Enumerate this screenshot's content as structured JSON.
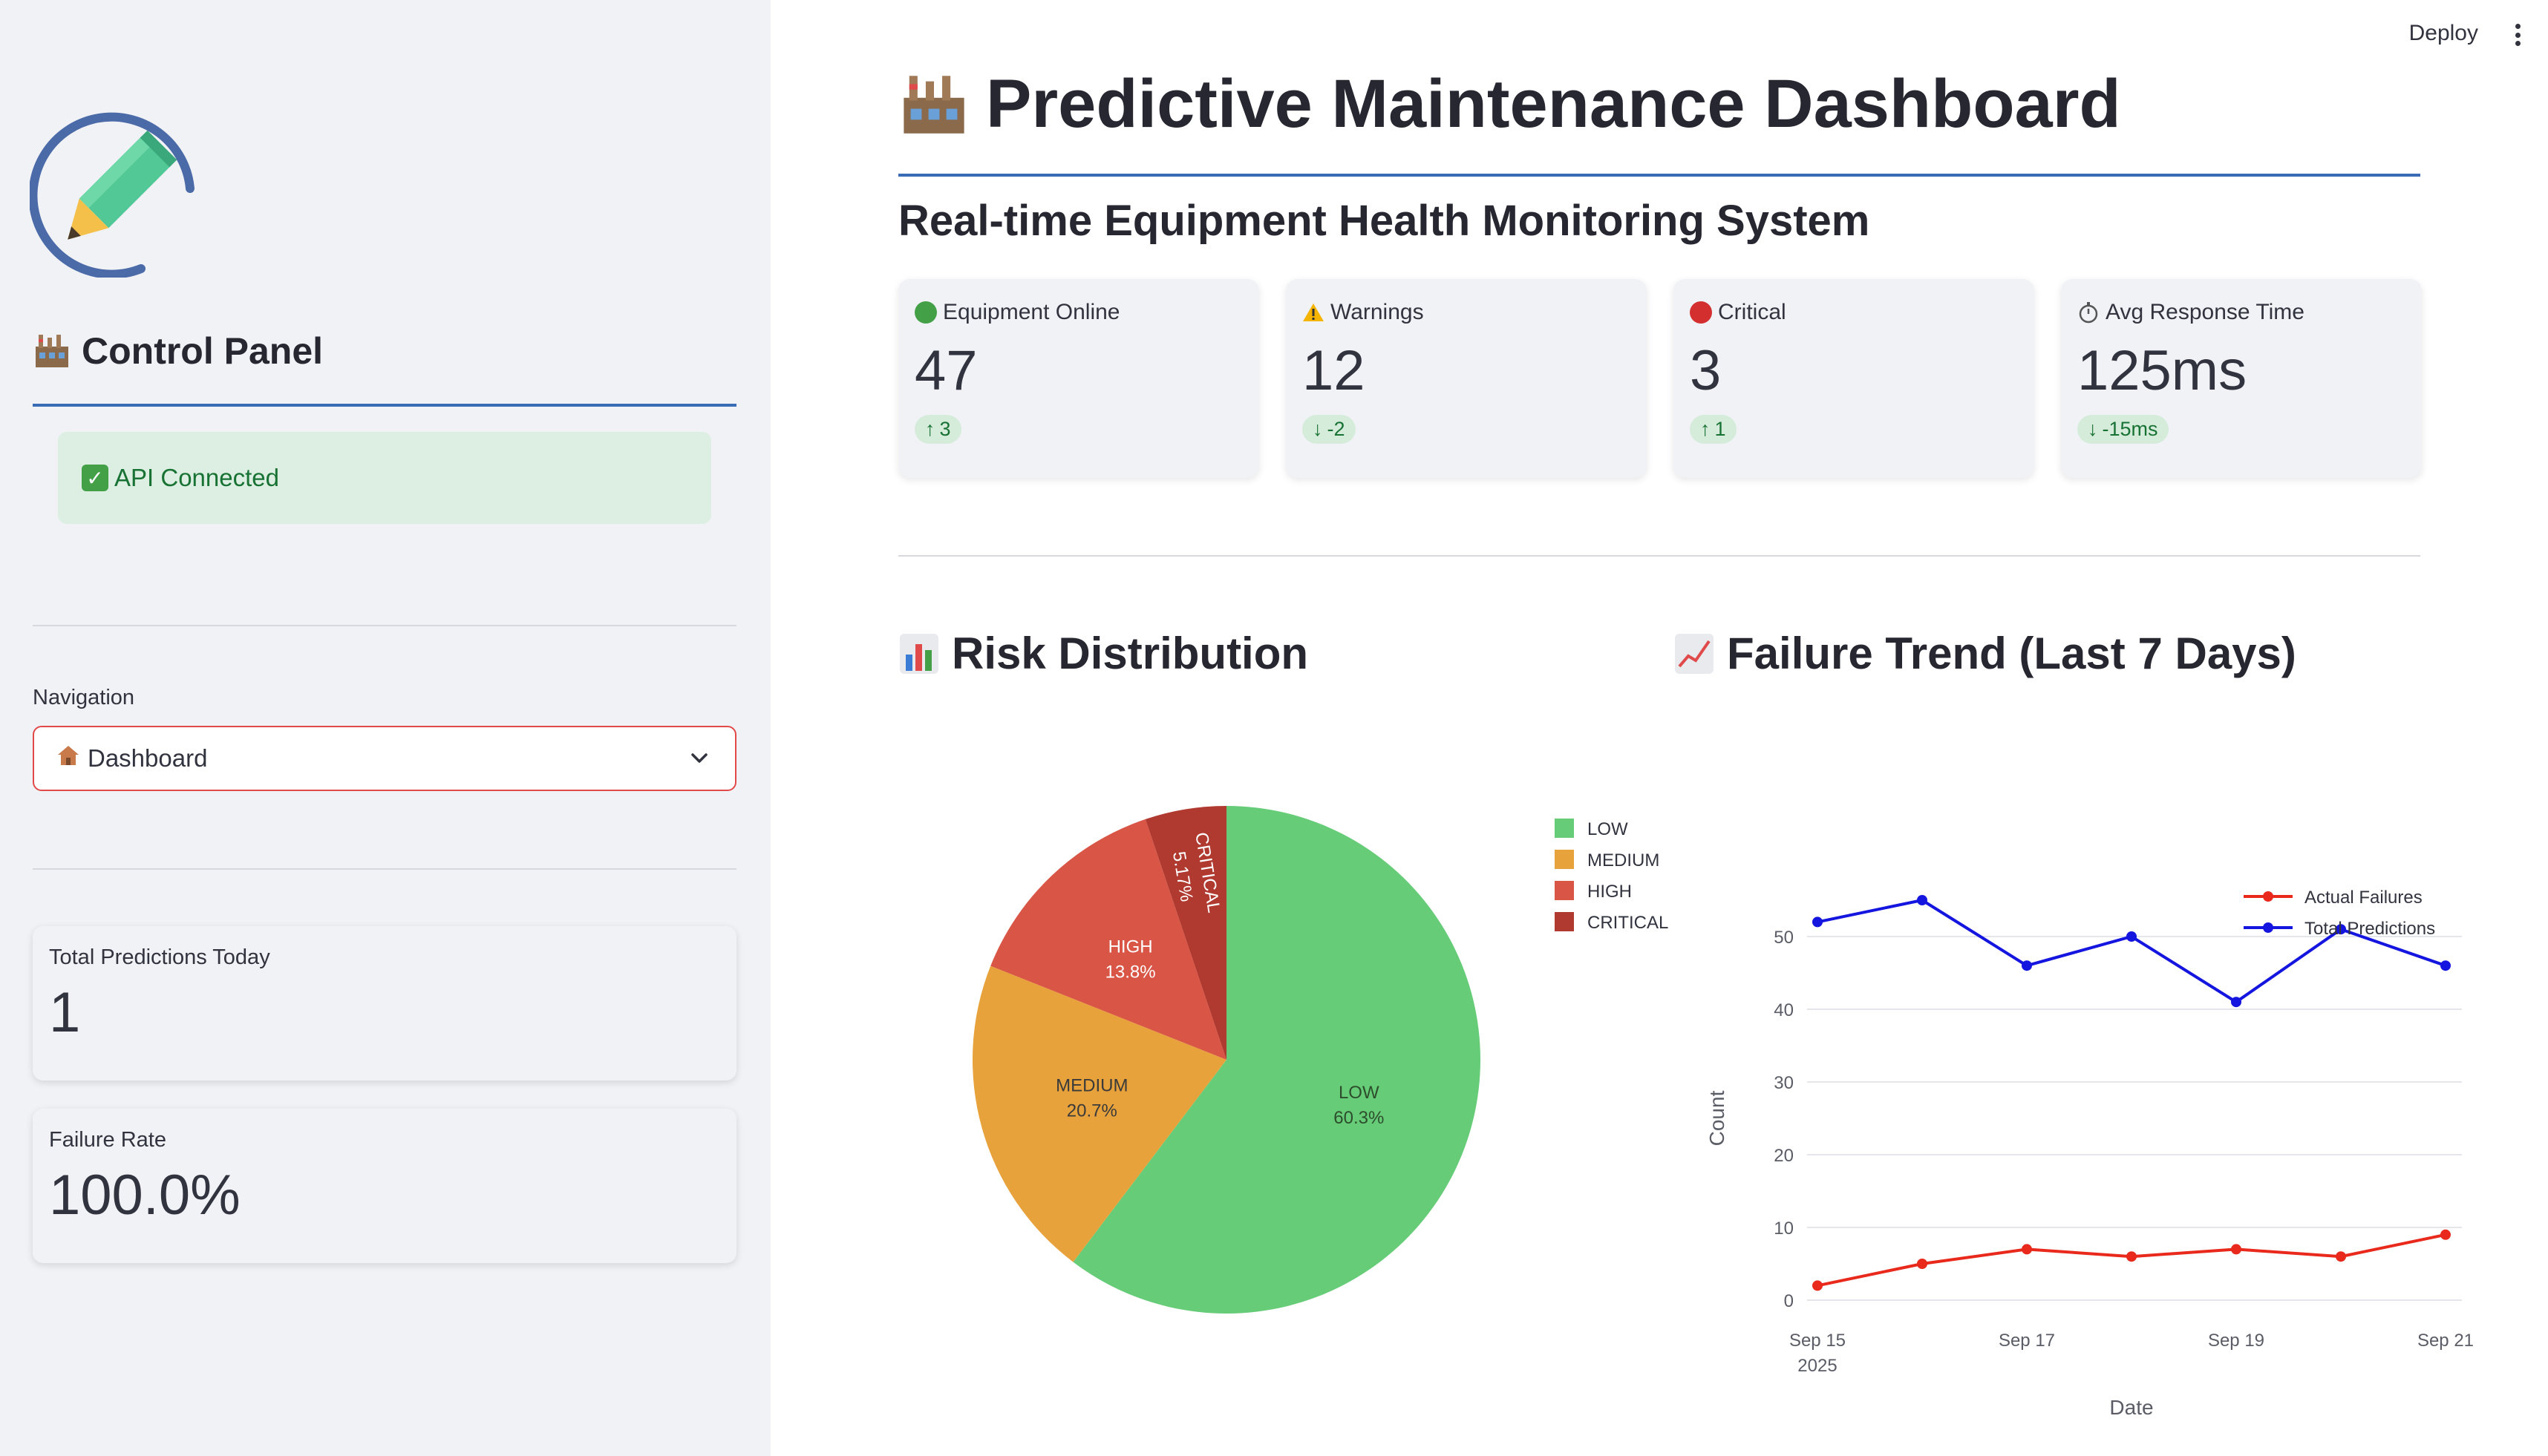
{
  "sidebar": {
    "title": "Control Panel",
    "api_status": "API Connected",
    "nav_label": "Navigation",
    "nav_selected": "Dashboard",
    "metrics": [
      {
        "label": "Total Predictions Today",
        "value": "1"
      },
      {
        "label": "Failure Rate",
        "value": "100.0%"
      }
    ]
  },
  "header": {
    "deploy_label": "Deploy",
    "page_title": "Predictive Maintenance Dashboard",
    "subtitle": "Real-time Equipment Health Monitoring System"
  },
  "kpis": [
    {
      "label": "Equipment Online",
      "value": "47",
      "delta": "3",
      "direction": "up",
      "icon": "green-circle-icon",
      "color": "#43a047"
    },
    {
      "label": "Warnings",
      "value": "12",
      "delta": "-2",
      "direction": "down",
      "icon": "warning-icon",
      "color": "#f5b400"
    },
    {
      "label": "Critical",
      "value": "3",
      "delta": "1",
      "direction": "up",
      "icon": "red-circle-icon",
      "color": "#d32f2f"
    },
    {
      "label": "Avg Response Time",
      "value": "125ms",
      "delta": "-15ms",
      "direction": "down",
      "icon": "stopwatch-icon",
      "color": "#555555"
    }
  ],
  "sections": {
    "risk": "Risk Distribution",
    "trend": "Failure Trend (Last 7 Days)"
  },
  "chart_data": [
    {
      "type": "pie",
      "labels": [
        "LOW",
        "MEDIUM",
        "HIGH",
        "CRITICAL"
      ],
      "values": [
        60.3,
        20.7,
        13.8,
        5.17
      ],
      "value_labels": [
        "60.3%",
        "20.7%",
        "13.8%",
        "5.17%"
      ],
      "colors": [
        "#66cc77",
        "#e8a23c",
        "#d95545",
        "#b03a30"
      ],
      "legend": "right"
    },
    {
      "type": "line",
      "x": [
        "2025-09-15",
        "2025-09-16",
        "2025-09-17",
        "2025-09-18",
        "2025-09-19",
        "2025-09-20",
        "2025-09-21"
      ],
      "x_ticks": [
        "Sep 15",
        "Sep 17",
        "Sep 19",
        "Sep 21"
      ],
      "x_tick_year": "2025",
      "series": [
        {
          "name": "Actual Failures",
          "values": [
            2,
            5,
            7,
            6,
            7,
            6,
            9
          ],
          "color": "#e8291c"
        },
        {
          "name": "Total Predictions",
          "values": [
            52,
            55,
            46,
            50,
            41,
            51,
            46
          ],
          "color": "#1515e0"
        }
      ],
      "xlabel": "Date",
      "ylabel": "Count",
      "y_ticks": [
        "0",
        "10",
        "20",
        "30",
        "40",
        "50"
      ],
      "ylim": [
        0,
        57
      ],
      "grid": true,
      "legend": "top-right"
    }
  ]
}
